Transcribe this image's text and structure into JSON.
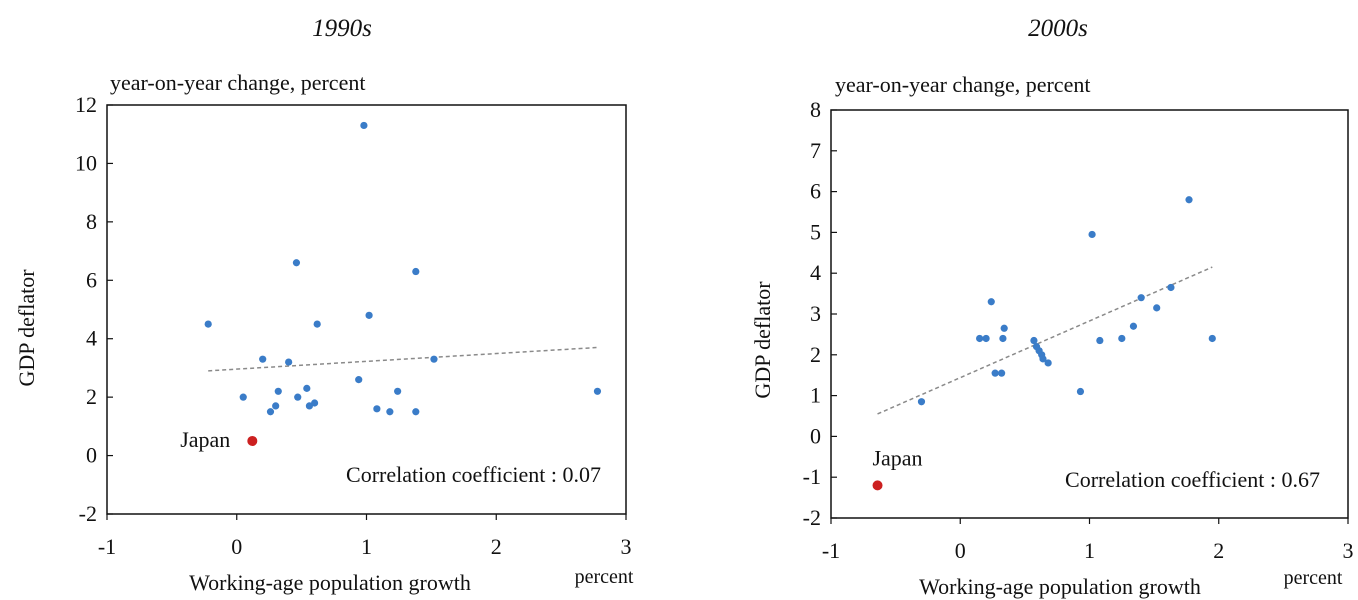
{
  "chart_data": [
    {
      "type": "scatter",
      "title": "1990s",
      "subtitle": "year-on-year change, percent",
      "xlabel": "Working-age population growth",
      "xunit": "percent",
      "ylabel": "GDP deflator",
      "xlim": [
        -1,
        3
      ],
      "ylim": [
        -2,
        12
      ],
      "xticks": [
        -1,
        0,
        1,
        2,
        3
      ],
      "yticks": [
        -2,
        0,
        2,
        4,
        6,
        8,
        10,
        12
      ],
      "grid": false,
      "point_color": "#3a7cc8",
      "highlight_color": "#cc2020",
      "trend_color": "#8a8a8a",
      "points": [
        {
          "x": -0.22,
          "y": 4.5
        },
        {
          "x": 0.05,
          "y": 2.0
        },
        {
          "x": 0.2,
          "y": 3.3
        },
        {
          "x": 0.26,
          "y": 1.5
        },
        {
          "x": 0.3,
          "y": 1.7
        },
        {
          "x": 0.32,
          "y": 2.2
        },
        {
          "x": 0.4,
          "y": 3.2
        },
        {
          "x": 0.46,
          "y": 6.6
        },
        {
          "x": 0.47,
          "y": 2.0
        },
        {
          "x": 0.54,
          "y": 2.3
        },
        {
          "x": 0.56,
          "y": 1.7
        },
        {
          "x": 0.6,
          "y": 1.8
        },
        {
          "x": 0.62,
          "y": 4.5
        },
        {
          "x": 0.94,
          "y": 2.6
        },
        {
          "x": 0.98,
          "y": 11.3
        },
        {
          "x": 1.02,
          "y": 4.8
        },
        {
          "x": 1.08,
          "y": 1.6
        },
        {
          "x": 1.18,
          "y": 1.5
        },
        {
          "x": 1.24,
          "y": 2.2
        },
        {
          "x": 1.38,
          "y": 6.3
        },
        {
          "x": 1.38,
          "y": 1.5
        },
        {
          "x": 1.52,
          "y": 3.3
        },
        {
          "x": 2.78,
          "y": 2.2
        }
      ],
      "highlight": {
        "label": "Japan",
        "x": 0.12,
        "y": 0.5
      },
      "trendline": {
        "x": [
          -0.22,
          2.78
        ],
        "y": [
          2.9,
          3.7
        ]
      },
      "annotation": "Correlation coefficient : 0.07"
    },
    {
      "type": "scatter",
      "title": "2000s",
      "subtitle": "year-on-year change, percent",
      "xlabel": "Working-age population growth",
      "xunit": "percent",
      "ylabel": "GDP deflator",
      "xlim": [
        -1,
        3
      ],
      "ylim": [
        -2,
        8
      ],
      "xticks": [
        -1,
        0,
        1,
        2,
        3
      ],
      "yticks": [
        -2,
        -1,
        0,
        1,
        2,
        3,
        4,
        5,
        6,
        7,
        8
      ],
      "grid": false,
      "point_color": "#3a7cc8",
      "highlight_color": "#cc2020",
      "trend_color": "#8a8a8a",
      "points": [
        {
          "x": -0.3,
          "y": 0.85
        },
        {
          "x": 0.15,
          "y": 2.4
        },
        {
          "x": 0.2,
          "y": 2.4
        },
        {
          "x": 0.24,
          "y": 3.3
        },
        {
          "x": 0.27,
          "y": 1.55
        },
        {
          "x": 0.32,
          "y": 1.55
        },
        {
          "x": 0.33,
          "y": 2.4
        },
        {
          "x": 0.34,
          "y": 2.65
        },
        {
          "x": 0.57,
          "y": 2.35
        },
        {
          "x": 0.59,
          "y": 2.2
        },
        {
          "x": 0.61,
          "y": 2.1
        },
        {
          "x": 0.63,
          "y": 2.0
        },
        {
          "x": 0.64,
          "y": 1.9
        },
        {
          "x": 0.68,
          "y": 1.8
        },
        {
          "x": 0.93,
          "y": 1.1
        },
        {
          "x": 1.02,
          "y": 4.95
        },
        {
          "x": 1.08,
          "y": 2.35
        },
        {
          "x": 1.25,
          "y": 2.4
        },
        {
          "x": 1.34,
          "y": 2.7
        },
        {
          "x": 1.4,
          "y": 3.4
        },
        {
          "x": 1.52,
          "y": 3.15
        },
        {
          "x": 1.63,
          "y": 3.65
        },
        {
          "x": 1.77,
          "y": 5.8
        },
        {
          "x": 1.95,
          "y": 2.4
        }
      ],
      "highlight": {
        "label": "Japan",
        "x": -0.64,
        "y": -1.2
      },
      "trendline": {
        "x": [
          -0.64,
          1.95
        ],
        "y": [
          0.55,
          4.15
        ]
      },
      "annotation": "Correlation coefficient : 0.67"
    }
  ]
}
